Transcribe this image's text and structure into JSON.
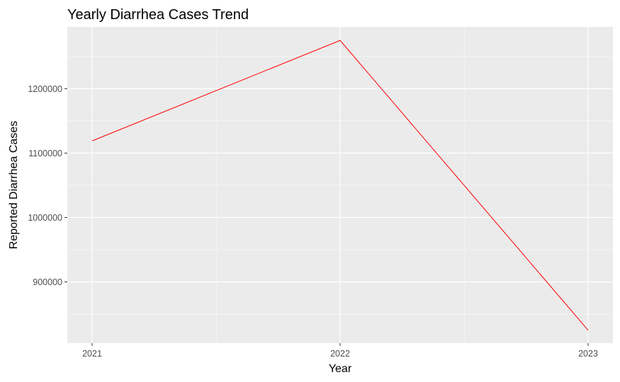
{
  "chart_data": {
    "type": "line",
    "title": "Yearly Diarrhea Cases Trend",
    "xlabel": "Year",
    "ylabel": "Reported Diarrhea Cases",
    "x": [
      "2021",
      "2022",
      "2023"
    ],
    "series": [
      {
        "values": [
          1119000,
          1275000,
          825000
        ],
        "color": "#ff0000"
      }
    ],
    "ylim": [
      805000,
      1296000
    ],
    "yticks": [
      900000,
      1000000,
      1100000,
      1200000
    ],
    "ytick_labels": [
      "900000",
      "1000000",
      "1100000",
      "1200000"
    ],
    "grid": true,
    "legend": "none",
    "panel_color": "#ebebeb"
  }
}
